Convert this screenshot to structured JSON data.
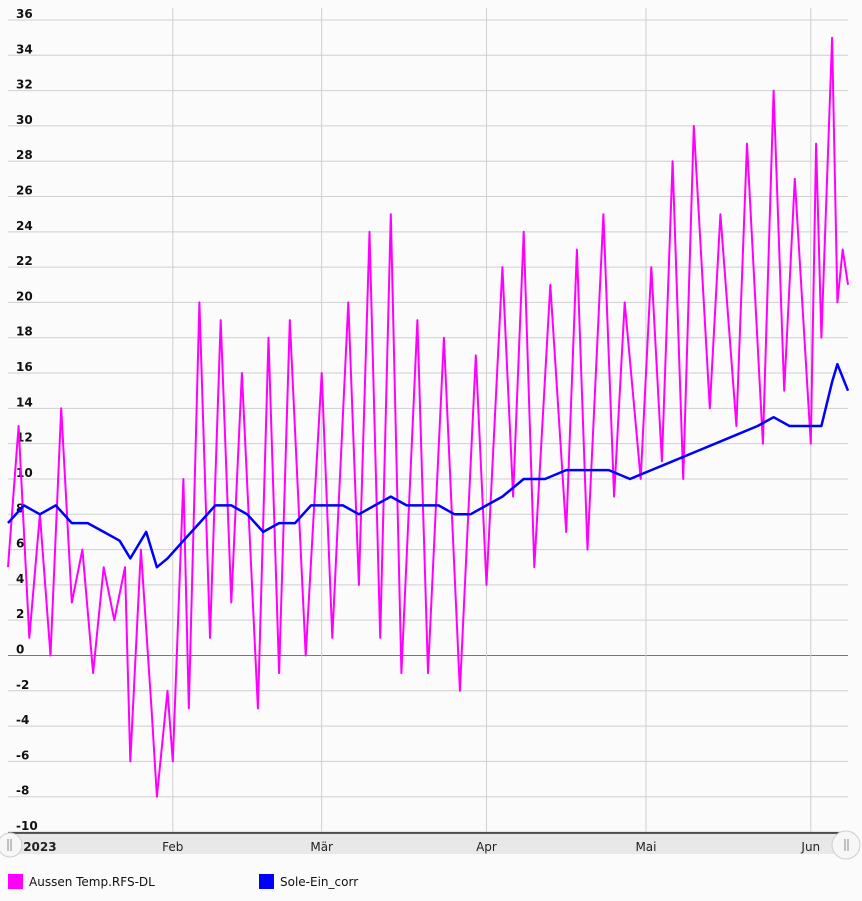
{
  "chart_data": {
    "type": "line",
    "title": "",
    "xlabel": "",
    "ylabel": "",
    "x_range": [
      "2023-01-01",
      "2023-06-08"
    ],
    "ylim": [
      -10,
      36
    ],
    "y_ticks": [
      36,
      34,
      32,
      30,
      28,
      26,
      24,
      22,
      20,
      18,
      16,
      14,
      12,
      10,
      8,
      6,
      4,
      2,
      0,
      -2,
      -4,
      -6,
      -8,
      -10
    ],
    "x_ticks": [
      {
        "label": "2023",
        "date": "2023-01-07",
        "bold": true
      },
      {
        "label": "Feb",
        "date": "2023-02-01",
        "bold": false
      },
      {
        "label": "Mär",
        "date": "2023-03-01",
        "bold": false
      },
      {
        "label": "Apr",
        "date": "2023-04-01",
        "bold": false
      },
      {
        "label": "Mai",
        "date": "2023-05-01",
        "bold": false
      },
      {
        "label": "Jun",
        "date": "2023-06-01",
        "bold": false
      }
    ],
    "grid": true,
    "legend_position": "bottom-left",
    "series": [
      {
        "name": "Aussen Temp.RFS-DL",
        "color": "#ff00ff",
        "points": [
          [
            "2023-01-01",
            5
          ],
          [
            "2023-01-03",
            13
          ],
          [
            "2023-01-05",
            1
          ],
          [
            "2023-01-07",
            8
          ],
          [
            "2023-01-09",
            0
          ],
          [
            "2023-01-11",
            14
          ],
          [
            "2023-01-13",
            3
          ],
          [
            "2023-01-15",
            6
          ],
          [
            "2023-01-17",
            -1
          ],
          [
            "2023-01-19",
            5
          ],
          [
            "2023-01-21",
            2
          ],
          [
            "2023-01-23",
            5
          ],
          [
            "2023-01-24",
            -6
          ],
          [
            "2023-01-26",
            6
          ],
          [
            "2023-01-28",
            -3
          ],
          [
            "2023-01-29",
            -8
          ],
          [
            "2023-01-31",
            -2
          ],
          [
            "2023-02-01",
            -6
          ],
          [
            "2023-02-03",
            10
          ],
          [
            "2023-02-04",
            -3
          ],
          [
            "2023-02-06",
            20
          ],
          [
            "2023-02-08",
            1
          ],
          [
            "2023-02-10",
            19
          ],
          [
            "2023-02-12",
            3
          ],
          [
            "2023-02-14",
            16
          ],
          [
            "2023-02-17",
            -3
          ],
          [
            "2023-02-19",
            18
          ],
          [
            "2023-02-21",
            -1
          ],
          [
            "2023-02-23",
            19
          ],
          [
            "2023-02-26",
            0
          ],
          [
            "2023-03-01",
            16
          ],
          [
            "2023-03-03",
            1
          ],
          [
            "2023-03-06",
            20
          ],
          [
            "2023-03-08",
            4
          ],
          [
            "2023-03-10",
            24
          ],
          [
            "2023-03-12",
            1
          ],
          [
            "2023-03-14",
            25
          ],
          [
            "2023-03-16",
            -1
          ],
          [
            "2023-03-19",
            19
          ],
          [
            "2023-03-21",
            -1
          ],
          [
            "2023-03-24",
            18
          ],
          [
            "2023-03-27",
            -2
          ],
          [
            "2023-03-30",
            17
          ],
          [
            "2023-04-01",
            4
          ],
          [
            "2023-04-04",
            22
          ],
          [
            "2023-04-06",
            9
          ],
          [
            "2023-04-08",
            24
          ],
          [
            "2023-04-10",
            5
          ],
          [
            "2023-04-13",
            21
          ],
          [
            "2023-04-16",
            7
          ],
          [
            "2023-04-18",
            23
          ],
          [
            "2023-04-20",
            6
          ],
          [
            "2023-04-23",
            25
          ],
          [
            "2023-04-25",
            9
          ],
          [
            "2023-04-27",
            20
          ],
          [
            "2023-04-30",
            10
          ],
          [
            "2023-05-02",
            22
          ],
          [
            "2023-05-04",
            11
          ],
          [
            "2023-05-06",
            28
          ],
          [
            "2023-05-08",
            10
          ],
          [
            "2023-05-10",
            30
          ],
          [
            "2023-05-13",
            14
          ],
          [
            "2023-05-15",
            25
          ],
          [
            "2023-05-18",
            13
          ],
          [
            "2023-05-20",
            29
          ],
          [
            "2023-05-23",
            12
          ],
          [
            "2023-05-25",
            32
          ],
          [
            "2023-05-27",
            15
          ],
          [
            "2023-05-29",
            27
          ],
          [
            "2023-06-01",
            12
          ],
          [
            "2023-06-02",
            29
          ],
          [
            "2023-06-03",
            18
          ],
          [
            "2023-06-05",
            35
          ],
          [
            "2023-06-06",
            20
          ],
          [
            "2023-06-07",
            23
          ],
          [
            "2023-06-08",
            21
          ]
        ]
      },
      {
        "name": "Sole-Ein_corr",
        "color": "#0000ff",
        "points": [
          [
            "2023-01-01",
            7.5
          ],
          [
            "2023-01-04",
            8.5
          ],
          [
            "2023-01-07",
            8
          ],
          [
            "2023-01-10",
            8.5
          ],
          [
            "2023-01-13",
            7.5
          ],
          [
            "2023-01-16",
            7.5
          ],
          [
            "2023-01-19",
            7
          ],
          [
            "2023-01-22",
            6.5
          ],
          [
            "2023-01-24",
            5.5
          ],
          [
            "2023-01-27",
            7
          ],
          [
            "2023-01-29",
            5
          ],
          [
            "2023-01-31",
            5.5
          ],
          [
            "2023-02-03",
            6.5
          ],
          [
            "2023-02-06",
            7.5
          ],
          [
            "2023-02-09",
            8.5
          ],
          [
            "2023-02-12",
            8.5
          ],
          [
            "2023-02-15",
            8
          ],
          [
            "2023-02-18",
            7
          ],
          [
            "2023-02-21",
            7.5
          ],
          [
            "2023-02-24",
            7.5
          ],
          [
            "2023-02-27",
            8.5
          ],
          [
            "2023-03-02",
            8.5
          ],
          [
            "2023-03-05",
            8.5
          ],
          [
            "2023-03-08",
            8
          ],
          [
            "2023-03-11",
            8.5
          ],
          [
            "2023-03-14",
            9
          ],
          [
            "2023-03-17",
            8.5
          ],
          [
            "2023-03-20",
            8.5
          ],
          [
            "2023-03-23",
            8.5
          ],
          [
            "2023-03-26",
            8
          ],
          [
            "2023-03-29",
            8
          ],
          [
            "2023-04-01",
            8.5
          ],
          [
            "2023-04-04",
            9
          ],
          [
            "2023-04-08",
            10
          ],
          [
            "2023-04-12",
            10
          ],
          [
            "2023-04-16",
            10.5
          ],
          [
            "2023-04-20",
            10.5
          ],
          [
            "2023-04-24",
            10.5
          ],
          [
            "2023-04-28",
            10
          ],
          [
            "2023-05-02",
            10.5
          ],
          [
            "2023-05-06",
            11
          ],
          [
            "2023-05-10",
            11.5
          ],
          [
            "2023-05-14",
            12
          ],
          [
            "2023-05-18",
            12.5
          ],
          [
            "2023-05-22",
            13
          ],
          [
            "2023-05-25",
            13.5
          ],
          [
            "2023-05-28",
            13
          ],
          [
            "2023-06-01",
            13
          ],
          [
            "2023-06-03",
            13
          ],
          [
            "2023-06-05",
            15.5
          ],
          [
            "2023-06-06",
            16.5
          ],
          [
            "2023-06-08",
            15
          ]
        ]
      }
    ]
  }
}
